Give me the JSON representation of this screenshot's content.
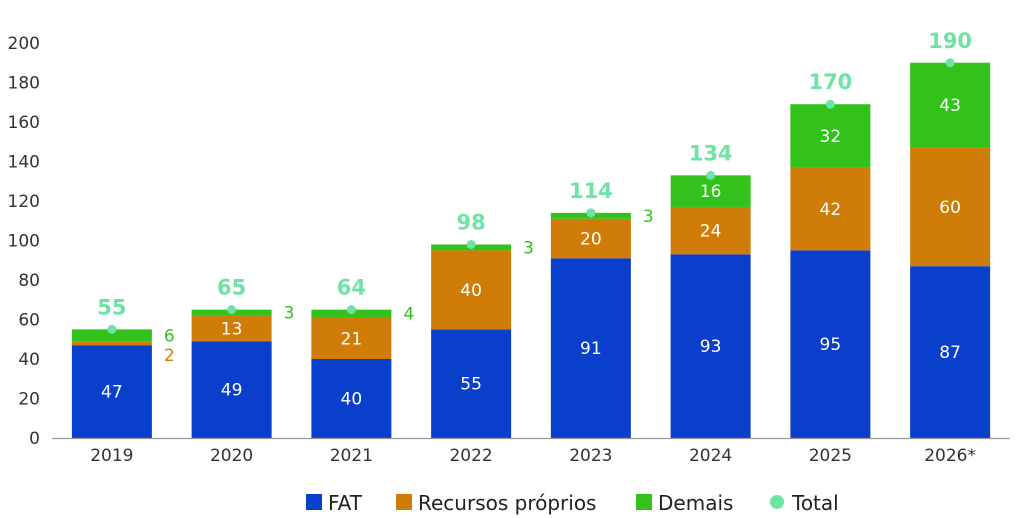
{
  "chart_data": {
    "type": "bar",
    "stacked": true,
    "categories": [
      "2019",
      "2020",
      "2021",
      "2022",
      "2023",
      "2024",
      "2025",
      "2026*"
    ],
    "series": [
      {
        "name": "FAT",
        "color": "#0a3fcc",
        "values": [
          47,
          49,
          40,
          55,
          91,
          93,
          95,
          87
        ]
      },
      {
        "name": "Recursos próprios",
        "color": "#d07c08",
        "values": [
          2,
          13,
          21,
          40,
          20,
          24,
          42,
          60
        ]
      },
      {
        "name": "Demais",
        "color": "#33c21c",
        "values": [
          6,
          3,
          4,
          3,
          3,
          16,
          32,
          43
        ]
      }
    ],
    "totals": {
      "name": "Total",
      "color": "#6fe3a6",
      "values": [
        55,
        65,
        64,
        98,
        114,
        134,
        170,
        190
      ]
    },
    "yticks": [
      "0",
      "20",
      "40",
      "60",
      "80",
      "100",
      "120",
      "140",
      "160",
      "180",
      "200"
    ],
    "ylim": [
      0,
      200
    ],
    "legend_position": "bottom",
    "grid": false
  }
}
